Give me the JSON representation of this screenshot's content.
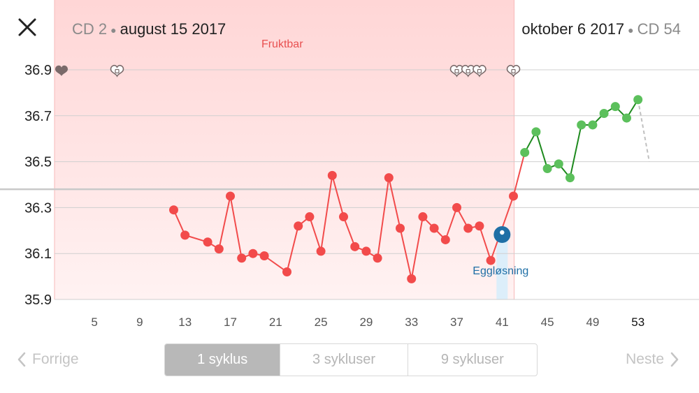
{
  "header": {
    "left_cd": "CD 2",
    "left_date": "august 15 2017",
    "right_date": "oktober 6 2017",
    "right_cd": "CD 54"
  },
  "fertile_label": "Fruktbar",
  "ovulation_label": "Eggløsning",
  "nav": {
    "prev": "Forrige",
    "next": "Neste"
  },
  "segments": [
    {
      "label": "1 syklus",
      "active": true
    },
    {
      "label": "3 sykluser",
      "active": false
    },
    {
      "label": "9 sykluser",
      "active": false
    }
  ],
  "icons": {
    "close": "close-icon",
    "prev": "chevron-left-icon",
    "next": "chevron-right-icon",
    "heart": "heart-icon"
  },
  "colors": {
    "pre": "#f24b4b",
    "post_dot": "#5cc05c",
    "post_line": "#1e8a1e",
    "ovulation": "#1f6fa6",
    "fertile": "#ffe0e0",
    "heart": "#7a6a6a"
  },
  "chart_data": {
    "type": "line",
    "x_axis": {
      "min": 2,
      "max": 58,
      "ticks": [
        5,
        9,
        13,
        17,
        21,
        25,
        29,
        33,
        37,
        41,
        45,
        49,
        53
      ],
      "highlight_tick": 53
    },
    "y_axis": {
      "min": 35.9,
      "max": 36.9,
      "ticks": [
        "36.9",
        "36.7",
        "36.5",
        "36.3",
        "36.1",
        "35.9"
      ]
    },
    "coverline": 36.38,
    "fertile_window": [
      2,
      42
    ],
    "ovulation_day": 41,
    "hearts": [
      {
        "day": 2,
        "filled": true
      },
      {
        "day": 7,
        "filled": false
      },
      {
        "day": 37,
        "filled": false
      },
      {
        "day": 38,
        "filled": false
      },
      {
        "day": 39,
        "filled": false
      },
      {
        "day": 42,
        "filled": false
      }
    ],
    "series": [
      {
        "points": [
          [
            12,
            36.29
          ],
          [
            13,
            36.18
          ],
          [
            15,
            36.15
          ],
          [
            16,
            36.12
          ],
          [
            17,
            36.35
          ],
          [
            18,
            36.08
          ],
          [
            19,
            36.1
          ],
          [
            20,
            36.09
          ],
          [
            22,
            36.02
          ],
          [
            23,
            36.22
          ],
          [
            24,
            36.26
          ],
          [
            25,
            36.11
          ],
          [
            26,
            36.44
          ],
          [
            27,
            36.26
          ],
          [
            28,
            36.13
          ],
          [
            29,
            36.11
          ],
          [
            30,
            36.08
          ],
          [
            31,
            36.43
          ],
          [
            32,
            36.21
          ],
          [
            33,
            35.99
          ],
          [
            34,
            36.26
          ],
          [
            35,
            36.21
          ],
          [
            36,
            36.16
          ],
          [
            37,
            36.3
          ],
          [
            38,
            36.21
          ],
          [
            39,
            36.22
          ],
          [
            40,
            36.07
          ],
          [
            42,
            36.35
          ]
        ]
      },
      {
        "points": [
          [
            43,
            36.54
          ],
          [
            44,
            36.63
          ],
          [
            45,
            36.47
          ],
          [
            46,
            36.49
          ],
          [
            47,
            36.43
          ],
          [
            48,
            36.66
          ],
          [
            49,
            36.66
          ],
          [
            50,
            36.71
          ],
          [
            51,
            36.74
          ],
          [
            52,
            36.69
          ],
          [
            53,
            36.77
          ]
        ]
      }
    ],
    "projection": [
      [
        53,
        36.77
      ],
      [
        54,
        36.5
      ]
    ]
  }
}
